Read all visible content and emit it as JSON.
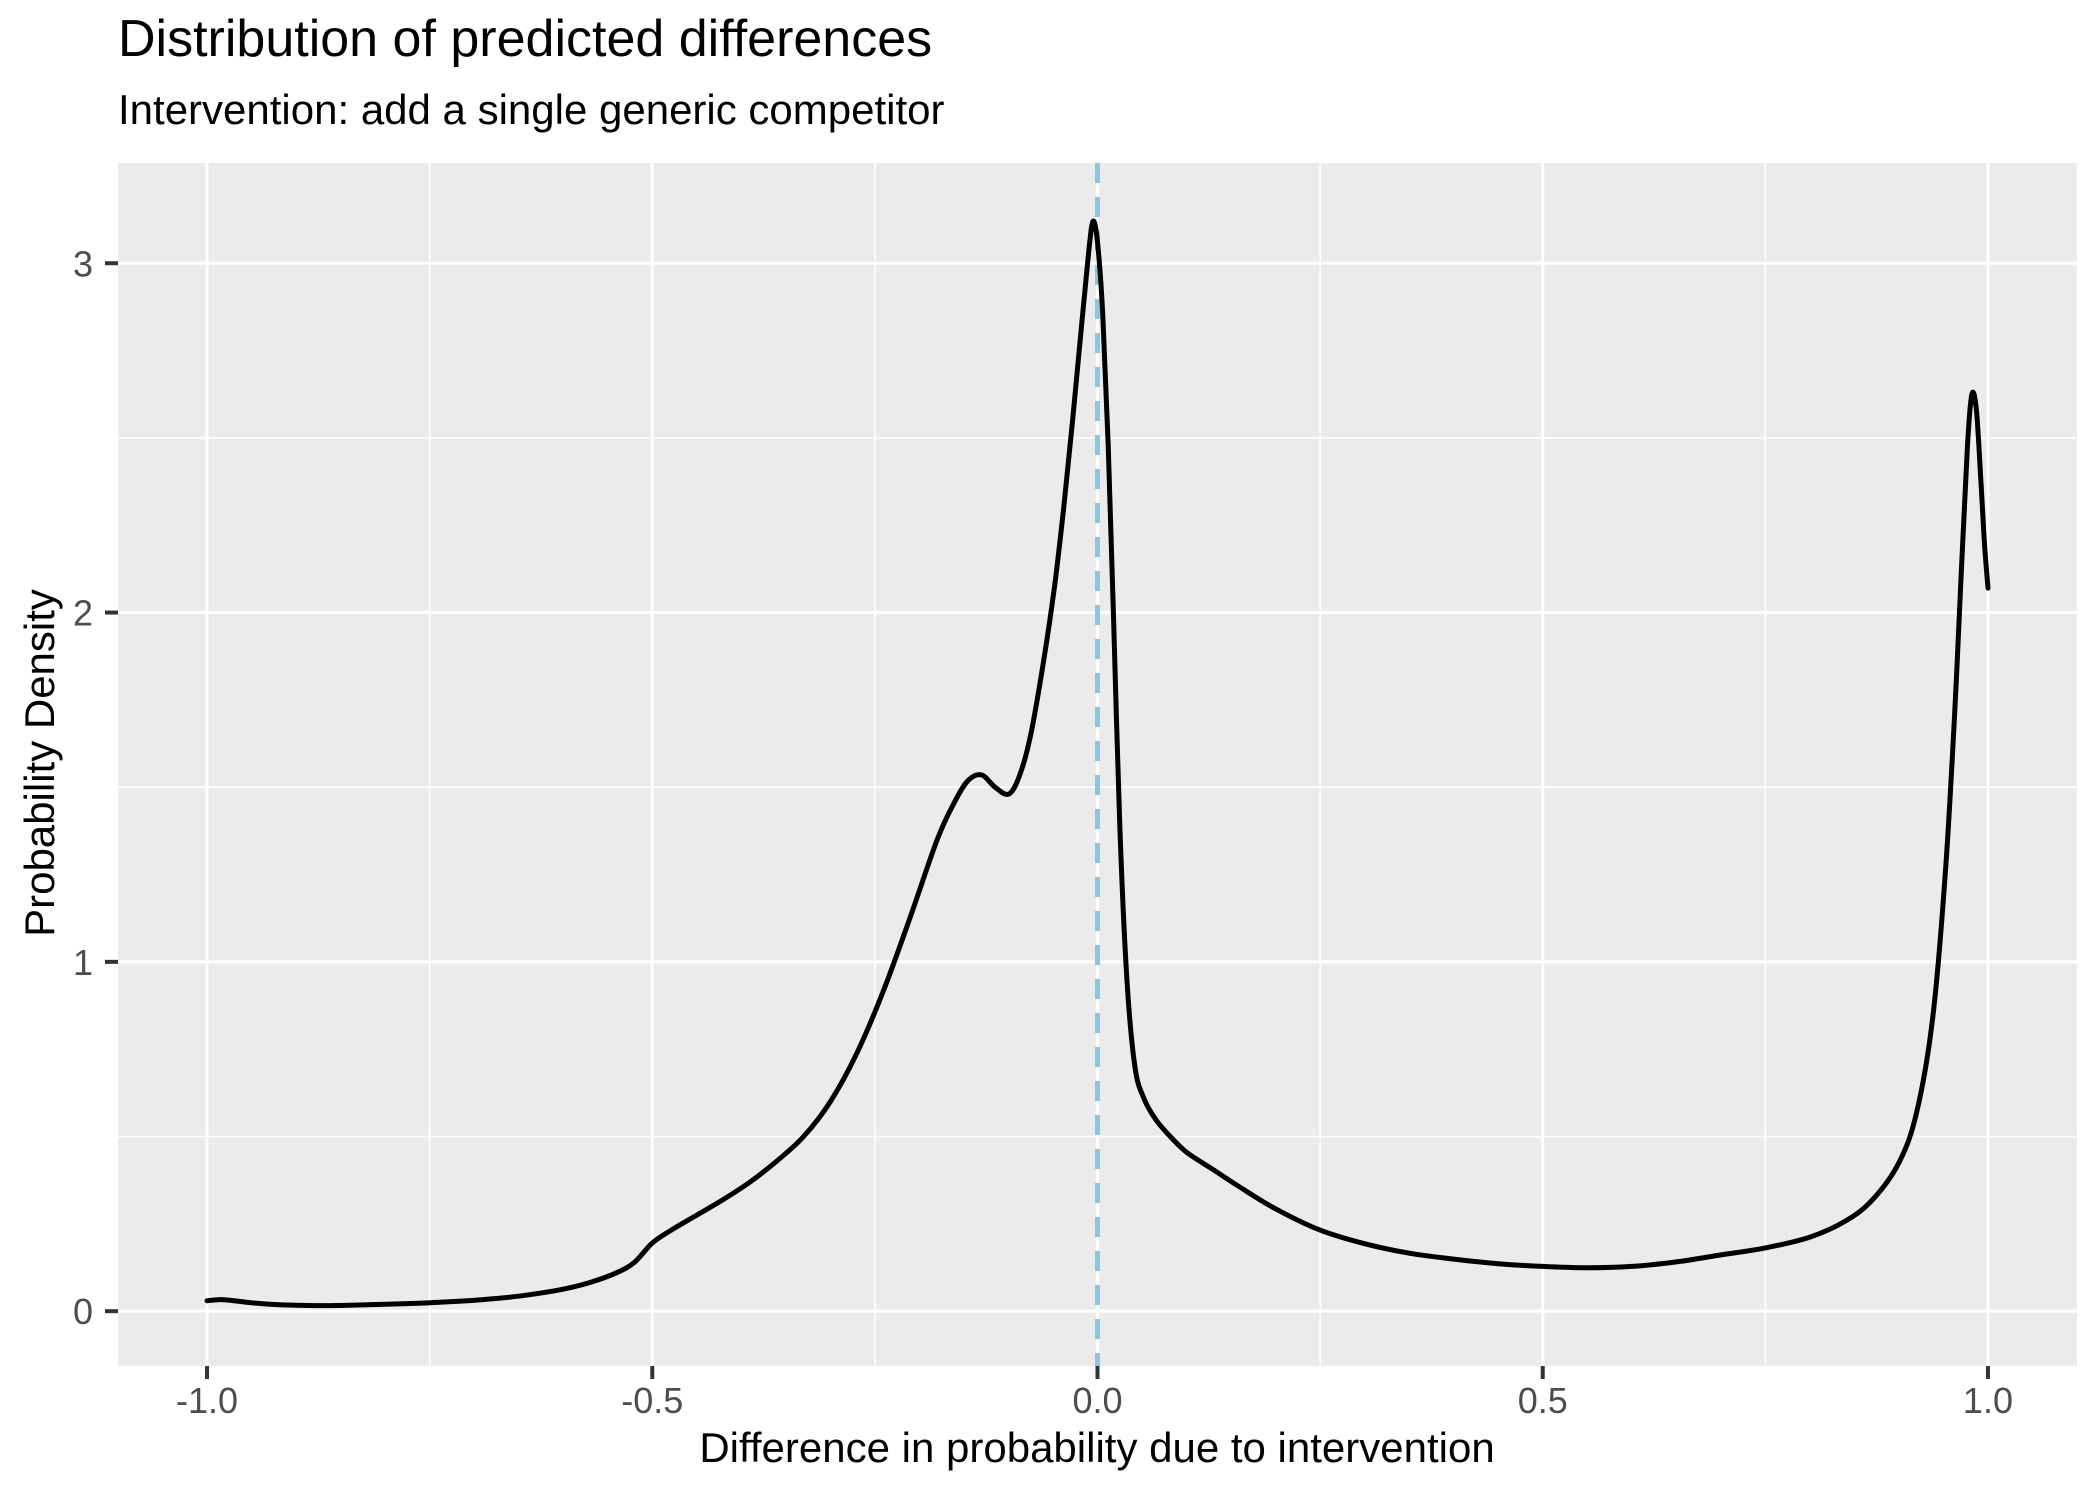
{
  "header": {
    "title": "Distribution of predicted differences",
    "subtitle": "Intervention: add a single generic competitor"
  },
  "chart_data": {
    "type": "line",
    "title": "Distribution of predicted differences",
    "subtitle": "Intervention: add a single generic competitor",
    "xlabel": "Difference in probability due to intervention",
    "ylabel": "Probability Density",
    "xlim": [
      -1.1,
      1.1
    ],
    "ylim": [
      -0.157,
      3.287
    ],
    "grid": "on",
    "legend": "none",
    "x_ticks": {
      "values": [
        -1.0,
        -0.5,
        0.0,
        0.5,
        1.0
      ],
      "labels": [
        "-1.0",
        "-0.5",
        "0.0",
        "0.5",
        "1.0"
      ]
    },
    "y_ticks": {
      "values": [
        0,
        1,
        2,
        3
      ],
      "labels": [
        "0",
        "1",
        "2",
        "3"
      ]
    },
    "x_minor_ticks": [
      -0.75,
      -0.25,
      0.25,
      0.75
    ],
    "y_minor_ticks": [
      0.5,
      1.5,
      2.5
    ],
    "colors": {
      "panel_background": "#EBEBEB",
      "grid": "#FFFFFF",
      "curve": "#000000",
      "tick_mark": "#333333",
      "tick_label": "#4D4D4D",
      "reference_line": "#87C7E8"
    },
    "vline": {
      "x": 0.0,
      "style": "dashed",
      "color": "#87C7E8"
    },
    "series": [
      {
        "name": "density of predicted differences",
        "color": "#000000",
        "points": [
          [
            -1.0,
            0.03
          ],
          [
            -0.985,
            0.033
          ],
          [
            -0.97,
            0.03
          ],
          [
            -0.95,
            0.024
          ],
          [
            -0.93,
            0.02
          ],
          [
            -0.9,
            0.017
          ],
          [
            -0.87,
            0.016
          ],
          [
            -0.84,
            0.017
          ],
          [
            -0.81,
            0.019
          ],
          [
            -0.78,
            0.021
          ],
          [
            -0.75,
            0.024
          ],
          [
            -0.72,
            0.028
          ],
          [
            -0.69,
            0.033
          ],
          [
            -0.66,
            0.04
          ],
          [
            -0.63,
            0.05
          ],
          [
            -0.6,
            0.063
          ],
          [
            -0.57,
            0.082
          ],
          [
            -0.54,
            0.11
          ],
          [
            -0.52,
            0.14
          ],
          [
            -0.5,
            0.195
          ],
          [
            -0.48,
            0.23
          ],
          [
            -0.45,
            0.275
          ],
          [
            -0.42,
            0.32
          ],
          [
            -0.39,
            0.37
          ],
          [
            -0.36,
            0.43
          ],
          [
            -0.33,
            0.5
          ],
          [
            -0.3,
            0.6
          ],
          [
            -0.27,
            0.74
          ],
          [
            -0.24,
            0.92
          ],
          [
            -0.21,
            1.13
          ],
          [
            -0.18,
            1.35
          ],
          [
            -0.16,
            1.46
          ],
          [
            -0.145,
            1.52
          ],
          [
            -0.13,
            1.535
          ],
          [
            -0.115,
            1.5
          ],
          [
            -0.1,
            1.48
          ],
          [
            -0.088,
            1.53
          ],
          [
            -0.075,
            1.65
          ],
          [
            -0.06,
            1.87
          ],
          [
            -0.048,
            2.08
          ],
          [
            -0.038,
            2.3
          ],
          [
            -0.028,
            2.55
          ],
          [
            -0.018,
            2.82
          ],
          [
            -0.01,
            3.03
          ],
          [
            -0.005,
            3.12
          ],
          [
            0.0,
            3.06
          ],
          [
            0.006,
            2.85
          ],
          [
            0.012,
            2.48
          ],
          [
            0.018,
            1.99
          ],
          [
            0.025,
            1.39
          ],
          [
            0.033,
            0.95
          ],
          [
            0.042,
            0.7
          ],
          [
            0.052,
            0.61
          ],
          [
            0.065,
            0.55
          ],
          [
            0.08,
            0.505
          ],
          [
            0.1,
            0.455
          ],
          [
            0.13,
            0.405
          ],
          [
            0.16,
            0.355
          ],
          [
            0.2,
            0.293
          ],
          [
            0.25,
            0.232
          ],
          [
            0.3,
            0.193
          ],
          [
            0.35,
            0.166
          ],
          [
            0.4,
            0.149
          ],
          [
            0.45,
            0.136
          ],
          [
            0.5,
            0.128
          ],
          [
            0.55,
            0.124
          ],
          [
            0.6,
            0.128
          ],
          [
            0.65,
            0.141
          ],
          [
            0.7,
            0.161
          ],
          [
            0.75,
            0.181
          ],
          [
            0.8,
            0.212
          ],
          [
            0.84,
            0.258
          ],
          [
            0.87,
            0.318
          ],
          [
            0.9,
            0.425
          ],
          [
            0.92,
            0.57
          ],
          [
            0.938,
            0.84
          ],
          [
            0.952,
            1.25
          ],
          [
            0.962,
            1.68
          ],
          [
            0.97,
            2.11
          ],
          [
            0.977,
            2.48
          ],
          [
            0.982,
            2.625
          ],
          [
            0.987,
            2.58
          ],
          [
            0.992,
            2.38
          ],
          [
            0.996,
            2.2
          ],
          [
            1.0,
            2.07
          ]
        ]
      }
    ]
  }
}
